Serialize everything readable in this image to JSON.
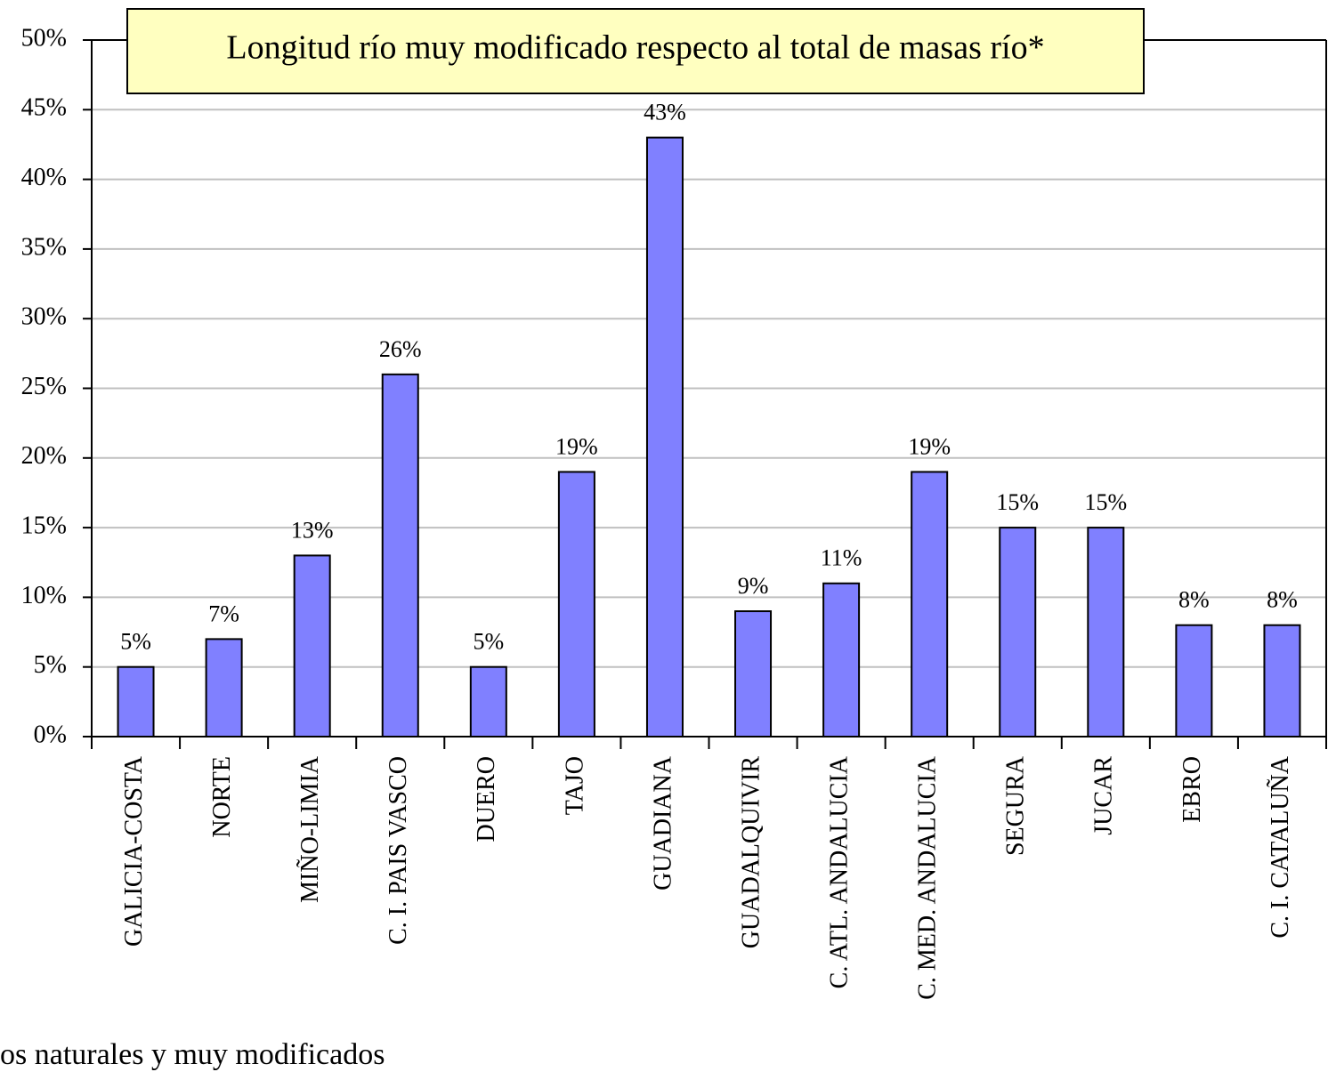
{
  "chart_data": {
    "type": "bar",
    "title": "Longitud río muy modificado respecto al total de masas río*",
    "footnote": "os naturales y muy modificados",
    "categories": [
      "GALICIA-COSTA",
      "NORTE",
      "MIÑO-LIMIA",
      "C. I. PAIS VASCO",
      "DUERO",
      "TAJO",
      "GUADIANA",
      "GUADALQUIVIR",
      "C. ATL. ANDALUCIA",
      "C. MED. ANDALUCIA",
      "SEGURA",
      "JUCAR",
      "EBRO",
      "C. I. CATALUÑA"
    ],
    "values": [
      5,
      7,
      13,
      26,
      5,
      19,
      43,
      9,
      11,
      19,
      15,
      15,
      8,
      8
    ],
    "value_labels": [
      "5%",
      "7%",
      "13%",
      "26%",
      "5%",
      "19%",
      "43%",
      "9%",
      "11%",
      "19%",
      "15%",
      "15%",
      "8%",
      "8%"
    ],
    "color": "#8080ff",
    "ylim": [
      0,
      50
    ],
    "yticks": [
      {
        "value": 0,
        "label": "0%"
      },
      {
        "value": 5,
        "label": "5%"
      },
      {
        "value": 10,
        "label": "10%"
      },
      {
        "value": 15,
        "label": "15%"
      },
      {
        "value": 20,
        "label": "20%"
      },
      {
        "value": 25,
        "label": "25%"
      },
      {
        "value": 30,
        "label": "30%"
      },
      {
        "value": 35,
        "label": "35%"
      },
      {
        "value": 40,
        "label": "40%"
      },
      {
        "value": 45,
        "label": "45%"
      },
      {
        "value": 50,
        "label": "50%"
      }
    ],
    "grid": true
  }
}
